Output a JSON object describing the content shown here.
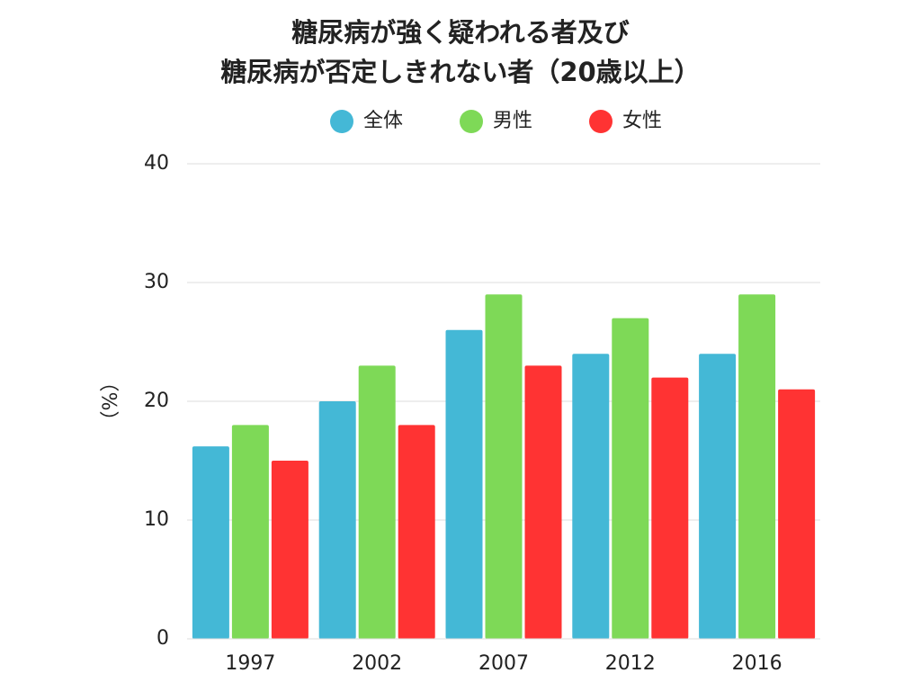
{
  "chart_data": {
    "type": "bar",
    "title_lines": [
      "糖尿病が強く疑われる者及び",
      "糖尿病が否定しきれない者（20歳以上）"
    ],
    "ylabel": "（%）",
    "ylim": [
      0,
      40
    ],
    "yticks": [
      0,
      10,
      20,
      30,
      40
    ],
    "grid": true,
    "legend_position": "top-center",
    "categories": [
      "1997",
      "2002",
      "2007",
      "2012",
      "2016"
    ],
    "series": [
      {
        "name": "全体",
        "color": "#44b8d6",
        "values": [
          16.2,
          20,
          26,
          24,
          24
        ]
      },
      {
        "name": "男性",
        "color": "#7ed957",
        "values": [
          18,
          23,
          29,
          27,
          29
        ]
      },
      {
        "name": "女性",
        "color": "#ff3333",
        "values": [
          15,
          18,
          23,
          22,
          21
        ]
      }
    ]
  }
}
